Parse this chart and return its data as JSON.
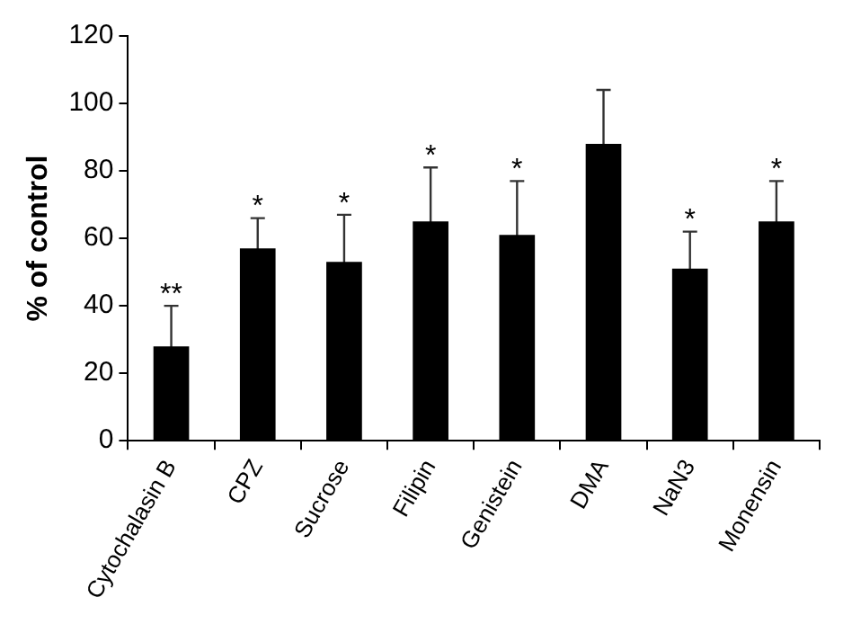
{
  "chart_data": {
    "type": "bar",
    "ylabel": "% of control",
    "categories": [
      "Cytochalasin B",
      "CPZ",
      "Sucrose",
      "Filipin",
      "Genistein",
      "DMA",
      "NaN3",
      "Monensin"
    ],
    "values": [
      28,
      57,
      53,
      65,
      61,
      88,
      51,
      65
    ],
    "errors": [
      12,
      9,
      14,
      16,
      16,
      16,
      11,
      12
    ],
    "color": "#000000",
    "ylim": [
      0,
      120
    ],
    "yticks": [
      0,
      20,
      40,
      60,
      80,
      100,
      120
    ],
    "grid": false,
    "legend": false,
    "annotations": [
      {
        "text": "**",
        "x": "Cytochalasin B",
        "y": 28
      },
      {
        "text": "*",
        "x": "CPZ",
        "y": 57
      },
      {
        "text": "*",
        "x": "Sucrose",
        "y": 53
      },
      {
        "text": "*",
        "x": "Filipin",
        "y": 65
      },
      {
        "text": "*",
        "x": "Genistein",
        "y": 61
      },
      {
        "text": "*",
        "x": "NaN3",
        "y": 51
      },
      {
        "text": "*",
        "x": "Monensin",
        "y": 65
      }
    ]
  }
}
